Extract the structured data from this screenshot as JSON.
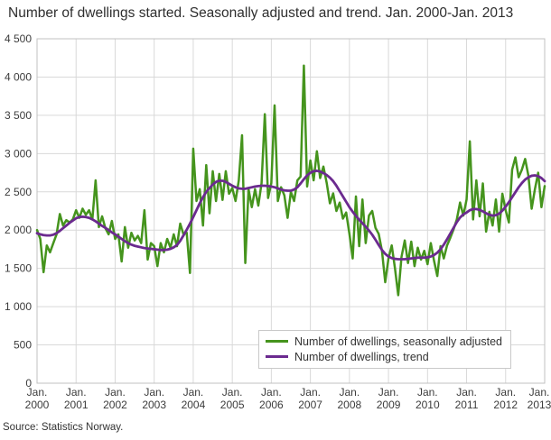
{
  "title": "Number of dwellings started. Seasonally adjusted and trend. Jan. 2000-Jan. 2013",
  "source": "Source: Statistics Norway.",
  "colors": {
    "seasonally_adjusted": "#45941d",
    "trend": "#6b2a8f",
    "grid": "#d9d9d9",
    "plot_border": "#c0c0c0",
    "text": "#3c3c3c"
  },
  "legend": {
    "items": [
      {
        "label": "Number of dwellings, seasonally adjusted"
      },
      {
        "label": "Number of dwellings, trend"
      }
    ]
  },
  "y_axis": {
    "tick_labels": [
      "4 500",
      "4 000",
      "3 500",
      "3 000",
      "2 500",
      "2 000",
      "1 500",
      "1 000",
      "500",
      "0"
    ]
  },
  "x_axis": {
    "month_label": "Jan.",
    "years": [
      "2000",
      "2001",
      "2002",
      "2003",
      "2004",
      "2005",
      "2006",
      "2007",
      "2008",
      "2009",
      "2010",
      "2011",
      "2012",
      "2013"
    ]
  },
  "chart_data": {
    "type": "line",
    "title": "Number of dwellings started. Seasonally adjusted and trend. Jan. 2000-Jan. 2013",
    "x_start": "2000-01",
    "x_end": "2013-01",
    "x_interval": "monthly",
    "xlabel": "",
    "ylabel": "",
    "ylim": [
      0,
      4500
    ],
    "y_tick_step": 500,
    "grid": true,
    "legend_position": "bottom-center-inside",
    "series": [
      {
        "name": "Number of dwellings, seasonally adjusted",
        "color": "#45941d",
        "values": [
          2000,
          1885,
          1450,
          1800,
          1710,
          1830,
          1945,
          2210,
          2060,
          2130,
          2100,
          2140,
          2260,
          2160,
          2280,
          2200,
          2260,
          2140,
          2650,
          2040,
          2180,
          2025,
          1945,
          2120,
          1885,
          1945,
          1590,
          2040,
          1770,
          1965,
          1865,
          1925,
          1830,
          2260,
          1615,
          1830,
          1790,
          1530,
          1830,
          1710,
          1885,
          1770,
          1945,
          1790,
          2085,
          1945,
          1965,
          1440,
          3065,
          2380,
          2535,
          2060,
          2850,
          2220,
          2770,
          2380,
          2735,
          2395,
          2770,
          2475,
          2550,
          2380,
          2650,
          3240,
          1570,
          2535,
          2300,
          2535,
          2320,
          2615,
          3515,
          2420,
          2615,
          3630,
          2380,
          2560,
          2455,
          2160,
          2500,
          2380,
          2650,
          2700,
          4150,
          2570,
          2910,
          2650,
          3030,
          2680,
          2830,
          2620,
          2350,
          2480,
          2250,
          2360,
          2150,
          2230,
          1950,
          1630,
          2440,
          1790,
          2400,
          1830,
          2190,
          2250,
          2030,
          1950,
          1730,
          1320,
          1630,
          1800,
          1500,
          1150,
          1650,
          1865,
          1570,
          1850,
          1530,
          1770,
          1615,
          1730,
          1555,
          1830,
          1600,
          1400,
          1790,
          1630,
          1800,
          1900,
          2010,
          2140,
          2360,
          2190,
          2400,
          3160,
          2140,
          2650,
          2180,
          2610,
          1980,
          2240,
          2060,
          2400,
          1980,
          2475,
          2260,
          2100,
          2790,
          2950,
          2690,
          2790,
          2930,
          2710,
          2280,
          2535,
          2750,
          2300,
          2575
        ]
      },
      {
        "name": "Number of dwellings, trend",
        "color": "#6b2a8f",
        "values": [
          1960,
          1945,
          1935,
          1930,
          1930,
          1940,
          1960,
          1990,
          2025,
          2060,
          2095,
          2125,
          2155,
          2170,
          2175,
          2170,
          2160,
          2140,
          2115,
          2085,
          2055,
          2030,
          2000,
          1970,
          1945,
          1915,
          1885,
          1855,
          1830,
          1810,
          1795,
          1785,
          1775,
          1765,
          1760,
          1755,
          1750,
          1745,
          1740,
          1740,
          1745,
          1755,
          1775,
          1805,
          1860,
          1930,
          2005,
          2085,
          2170,
          2260,
          2350,
          2430,
          2500,
          2550,
          2595,
          2630,
          2645,
          2645,
          2630,
          2605,
          2580,
          2560,
          2545,
          2540,
          2540,
          2550,
          2560,
          2570,
          2575,
          2580,
          2580,
          2575,
          2570,
          2560,
          2545,
          2530,
          2520,
          2515,
          2515,
          2530,
          2560,
          2610,
          2665,
          2715,
          2750,
          2770,
          2775,
          2765,
          2745,
          2720,
          2685,
          2640,
          2580,
          2510,
          2440,
          2370,
          2300,
          2240,
          2185,
          2135,
          2090,
          2045,
          1995,
          1940,
          1875,
          1805,
          1740,
          1690,
          1655,
          1635,
          1625,
          1620,
          1620,
          1620,
          1625,
          1630,
          1635,
          1640,
          1640,
          1640,
          1645,
          1655,
          1675,
          1705,
          1750,
          1810,
          1880,
          1955,
          2030,
          2105,
          2165,
          2205,
          2230,
          2260,
          2275,
          2275,
          2265,
          2245,
          2220,
          2200,
          2190,
          2195,
          2215,
          2255,
          2305,
          2365,
          2430,
          2495,
          2560,
          2615,
          2660,
          2690,
          2710,
          2715,
          2705,
          2680,
          2640
        ]
      }
    ]
  }
}
